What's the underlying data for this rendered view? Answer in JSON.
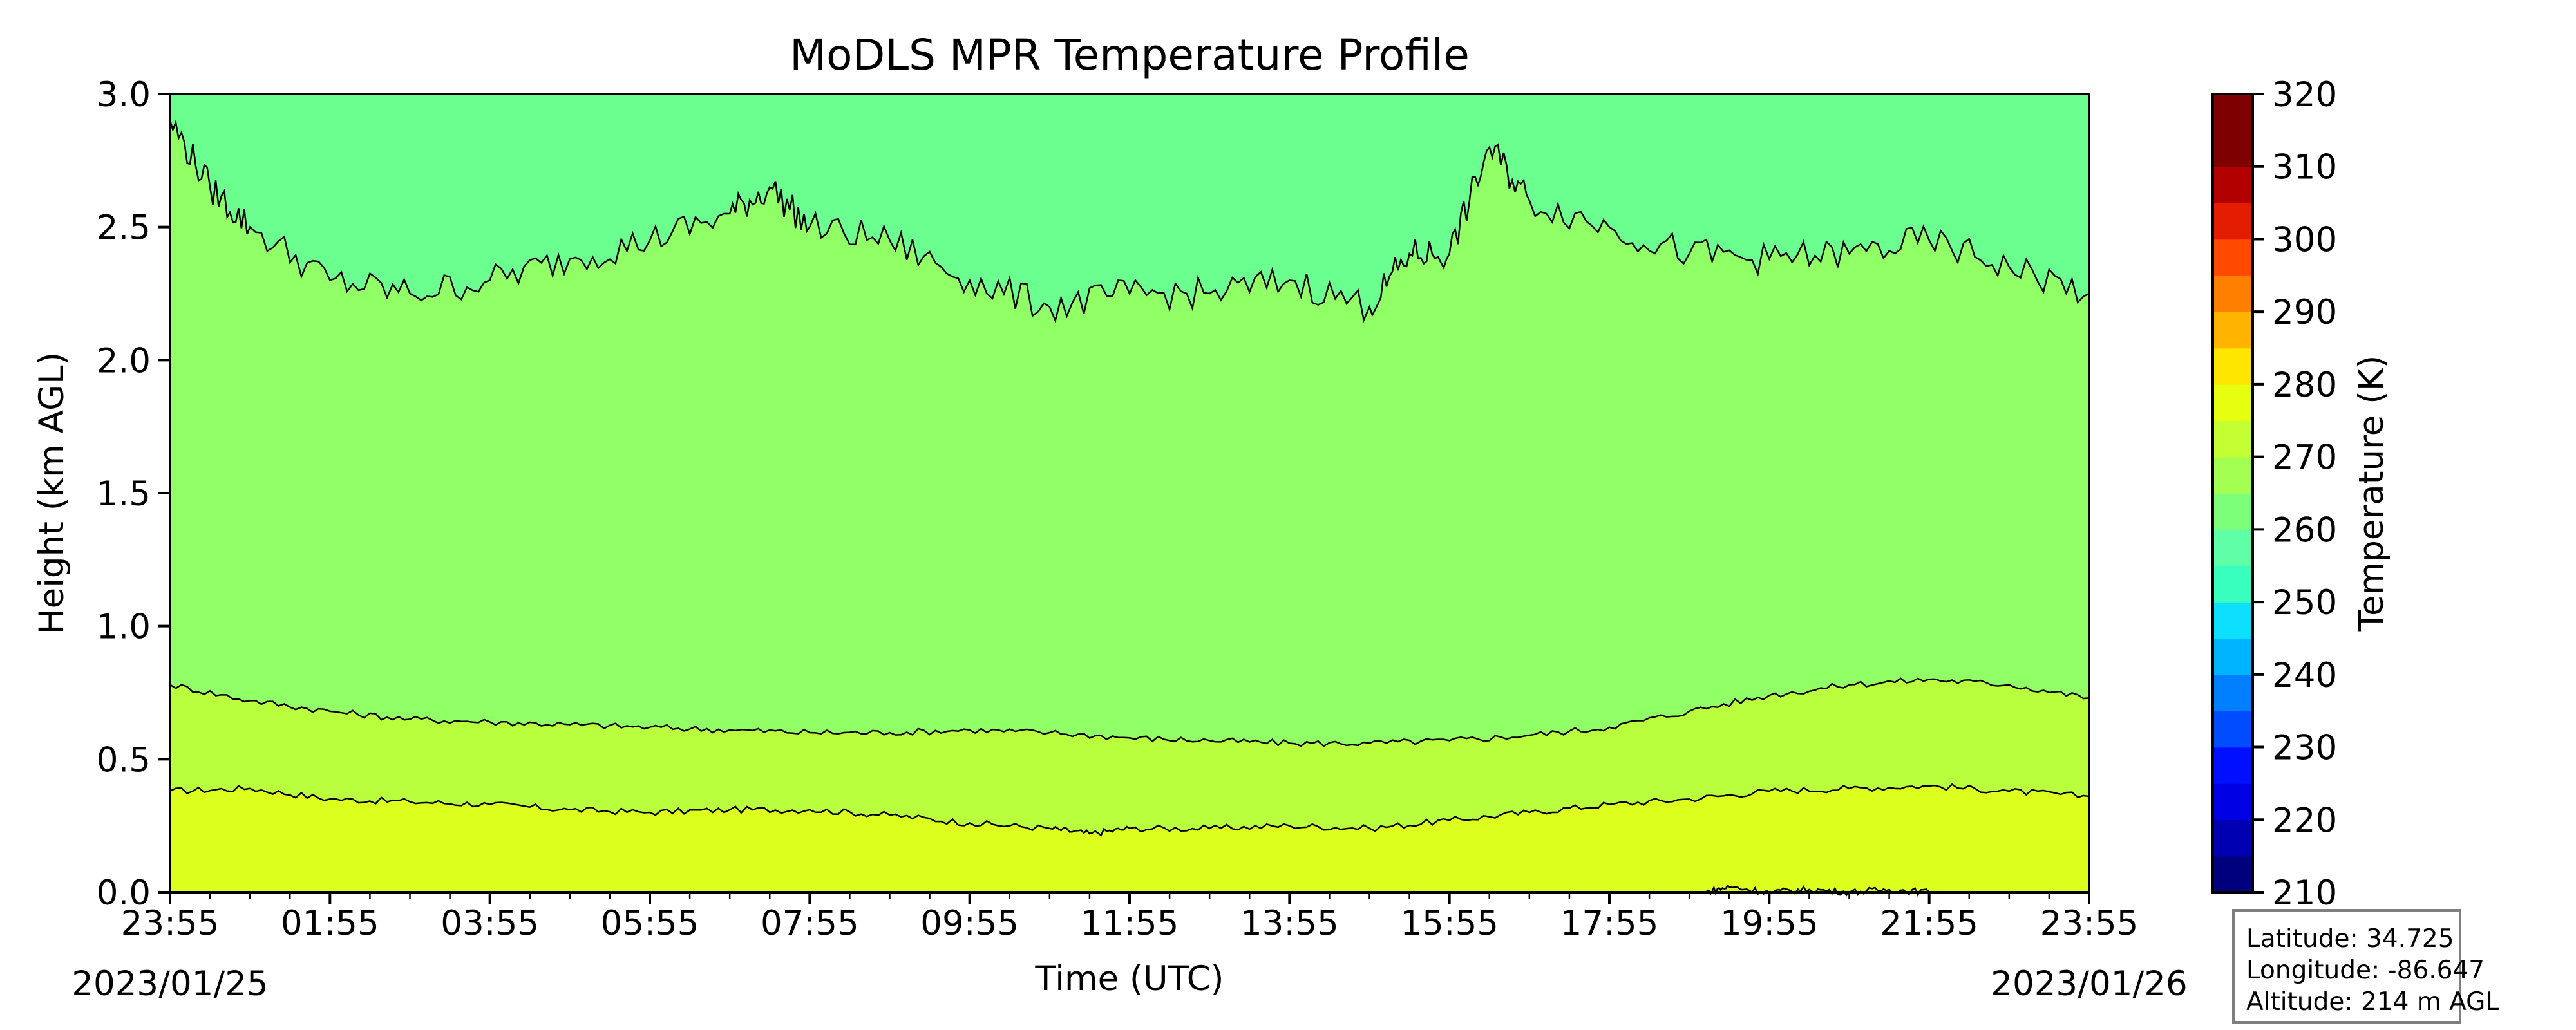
{
  "chart_data": {
    "type": "contour",
    "title": "MoDLS MPR Temperature Profile",
    "xlabel": "Time (UTC)",
    "ylabel": "Height (km AGL)",
    "x_ticks": [
      "23:55",
      "01:55",
      "03:55",
      "05:55",
      "07:55",
      "09:55",
      "11:55",
      "13:55",
      "15:55",
      "17:55",
      "19:55",
      "21:55",
      "23:55"
    ],
    "x_range_hours": [
      0,
      24
    ],
    "date_start": "2023/01/25",
    "date_end": "2023/01/26",
    "ylim": [
      0,
      3
    ],
    "y_ticks": [
      "0.0",
      "0.5",
      "1.0",
      "1.5",
      "2.0",
      "2.5",
      "3.0"
    ],
    "colorbar": {
      "label": "Temperature (K)",
      "min": 210,
      "max": 320,
      "step": 5,
      "ticks": [
        "210",
        "220",
        "230",
        "240",
        "250",
        "260",
        "270",
        "280",
        "290",
        "300",
        "310",
        "320"
      ],
      "colors": [
        "#00007f",
        "#0000b2",
        "#0000e5",
        "#0010ff",
        "#004cff",
        "#0080ff",
        "#00b4ff",
        "#0de0ff",
        "#39ffbe",
        "#5effa6",
        "#7cff79",
        "#a4ff53",
        "#c4ff33",
        "#e6ff11",
        "#ffe600",
        "#ffb400",
        "#ff8000",
        "#ff4a00",
        "#e41c00",
        "#b20000",
        "#7f0000",
        "#7f0000"
      ]
    },
    "filled_bands": [
      {
        "range_K": [
          280,
          285
        ],
        "color": "#dcff1e"
      },
      {
        "range_K": [
          275,
          280
        ],
        "color": "#b9ff3e"
      },
      {
        "range_K": [
          270,
          275
        ],
        "color": "#91ff66"
      },
      {
        "range_K": [
          265,
          270
        ],
        "color": "#6aff8e"
      }
    ],
    "contour_lines": [
      {
        "level_K": 280,
        "height_km": [
          [
            0,
            0.38
          ],
          [
            1,
            0.39
          ],
          [
            2,
            0.35
          ],
          [
            3,
            0.34
          ],
          [
            4,
            0.33
          ],
          [
            5,
            0.31
          ],
          [
            6,
            0.3
          ],
          [
            7,
            0.31
          ],
          [
            8,
            0.31
          ],
          [
            9,
            0.29
          ],
          [
            10,
            0.26
          ],
          [
            11,
            0.24
          ],
          [
            11.5,
            0.22
          ],
          [
            12,
            0.24
          ],
          [
            13,
            0.24
          ],
          [
            14,
            0.25
          ],
          [
            15,
            0.24
          ],
          [
            16,
            0.27
          ],
          [
            17,
            0.3
          ],
          [
            18,
            0.33
          ],
          [
            19,
            0.35
          ],
          [
            20,
            0.38
          ],
          [
            21,
            0.39
          ],
          [
            22,
            0.4
          ],
          [
            23,
            0.38
          ],
          [
            24,
            0.36
          ]
        ]
      },
      {
        "level_K": 275,
        "height_km": [
          [
            0,
            0.78
          ],
          [
            1,
            0.72
          ],
          [
            2,
            0.68
          ],
          [
            3,
            0.65
          ],
          [
            4,
            0.64
          ],
          [
            5,
            0.63
          ],
          [
            6,
            0.62
          ],
          [
            7,
            0.61
          ],
          [
            8,
            0.6
          ],
          [
            9,
            0.6
          ],
          [
            10,
            0.61
          ],
          [
            11,
            0.6
          ],
          [
            12,
            0.58
          ],
          [
            13,
            0.57
          ],
          [
            14,
            0.56
          ],
          [
            15,
            0.56
          ],
          [
            16,
            0.57
          ],
          [
            17,
            0.59
          ],
          [
            18,
            0.62
          ],
          [
            19,
            0.68
          ],
          [
            20,
            0.74
          ],
          [
            21,
            0.78
          ],
          [
            22,
            0.8
          ],
          [
            23,
            0.78
          ],
          [
            24,
            0.73
          ]
        ]
      },
      {
        "level_K": 270,
        "height_km": [
          [
            0,
            2.9
          ],
          [
            0.5,
            2.65
          ],
          [
            1,
            2.5
          ],
          [
            2,
            2.3
          ],
          [
            3,
            2.25
          ],
          [
            4,
            2.3
          ],
          [
            5,
            2.38
          ],
          [
            6,
            2.45
          ],
          [
            7,
            2.55
          ],
          [
            7.5,
            2.65
          ],
          [
            8,
            2.5
          ],
          [
            9,
            2.45
          ],
          [
            10,
            2.3
          ],
          [
            11,
            2.2
          ],
          [
            12,
            2.25
          ],
          [
            13,
            2.25
          ],
          [
            14,
            2.3
          ],
          [
            15,
            2.2
          ],
          [
            15.5,
            2.4
          ],
          [
            16,
            2.4
          ],
          [
            16.5,
            2.8
          ],
          [
            17,
            2.6
          ],
          [
            18,
            2.5
          ],
          [
            19,
            2.4
          ],
          [
            20,
            2.38
          ],
          [
            21,
            2.4
          ],
          [
            22,
            2.45
          ],
          [
            23,
            2.35
          ],
          [
            24,
            2.25
          ]
        ]
      },
      {
        "level_K": 285,
        "height_km": [
          [
            19.2,
            0.0
          ],
          [
            19.5,
            0.02
          ],
          [
            20,
            0.0
          ],
          [
            20.5,
            0.01
          ],
          [
            21,
            0.0
          ],
          [
            21.5,
            0.01
          ],
          [
            22,
            0.0
          ]
        ]
      }
    ]
  },
  "station_info": {
    "latitude": "Latitude: 34.725",
    "longitude": "Longitude: -86.647",
    "altitude": "Altitude: 214 m AGL"
  }
}
